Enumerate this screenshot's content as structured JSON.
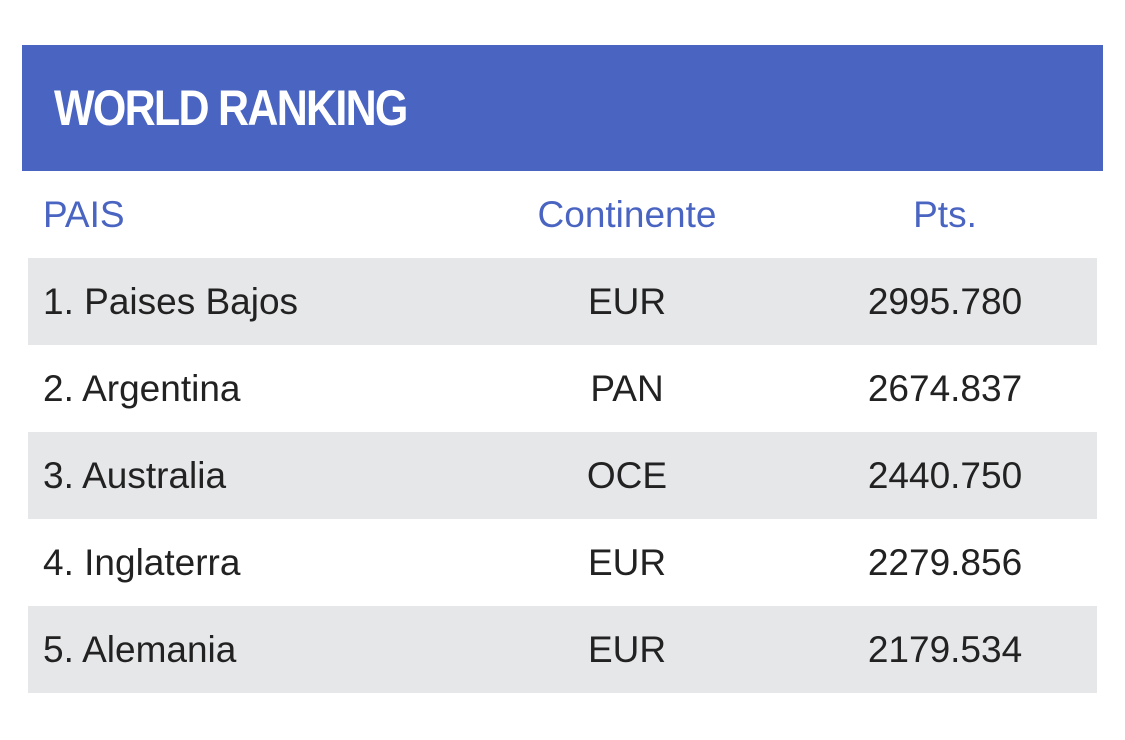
{
  "widget": {
    "title": "WORLD RANKING",
    "colors": {
      "header_bg": "#4a64c2",
      "header_text": "#ffffff",
      "column_header_text": "#4a64c2",
      "row_alt_bg": "#e6e7e9",
      "row_text": "#222222"
    },
    "columns": {
      "country": "PAIS",
      "continent": "Continente",
      "points": "Pts."
    },
    "rows": [
      {
        "country": "1. Paises Bajos",
        "continent": "EUR",
        "points": "2995.780"
      },
      {
        "country": "2. Argentina",
        "continent": "PAN",
        "points": "2674.837"
      },
      {
        "country": "3. Australia",
        "continent": "OCE",
        "points": "2440.750"
      },
      {
        "country": "4. Inglaterra",
        "continent": "EUR",
        "points": "2279.856"
      },
      {
        "country": "5. Alemania",
        "continent": "EUR",
        "points": "2179.534"
      }
    ]
  }
}
